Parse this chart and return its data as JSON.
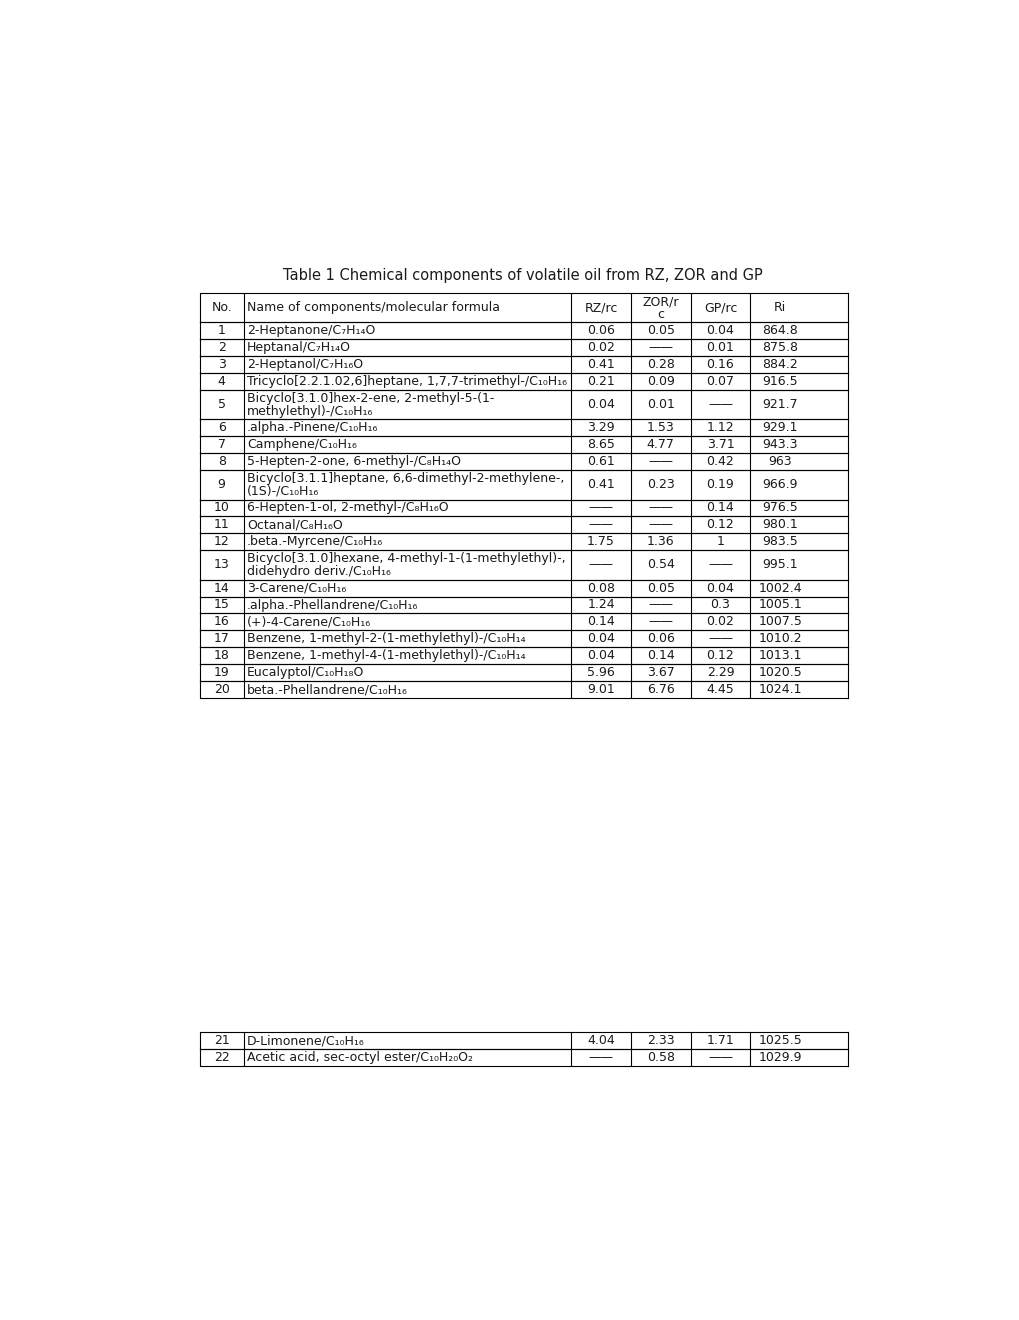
{
  "title": "Table 1 Chemical components of volatile oil from RZ, ZOR and GP",
  "rows": [
    [
      "1",
      "2-Heptanone/C₇H₁₄O",
      "0.06",
      "0.05",
      "0.04",
      "864.8"
    ],
    [
      "2",
      "Heptanal/C₇H₁₄O",
      "0.02",
      "——",
      "0.01",
      "875.8"
    ],
    [
      "3",
      "2-Heptanol/C₇H₁₆O",
      "0.41",
      "0.28",
      "0.16",
      "884.2"
    ],
    [
      "4",
      "Tricyclo[2.2.1.02,6]heptane, 1,7,7-trimethyl-/C₁₀H₁₆",
      "0.21",
      "0.09",
      "0.07",
      "916.5"
    ],
    [
      "5",
      "Bicyclo[3.1.0]hex-2-ene, 2-methyl-5-(1-\nmethylethyl)-/C₁₀H₁₆",
      "0.04",
      "0.01",
      "——",
      "921.7"
    ],
    [
      "6",
      ".alpha.-Pinene/C₁₀H₁₆",
      "3.29",
      "1.53",
      "1.12",
      "929.1"
    ],
    [
      "7",
      "Camphene/C₁₀H₁₆",
      "8.65",
      "4.77",
      "3.71",
      "943.3"
    ],
    [
      "8",
      "5-Hepten-2-one, 6-methyl-/C₈H₁₄O",
      "0.61",
      "——",
      "0.42",
      "963"
    ],
    [
      "9",
      "Bicyclo[3.1.1]heptane, 6,6-dimethyl-2-methylene-,\n(1S)-/C₁₀H₁₆",
      "0.41",
      "0.23",
      "0.19",
      "966.9"
    ],
    [
      "10",
      "6-Hepten-1-ol, 2-methyl-/C₈H₁₆O",
      "——",
      "——",
      "0.14",
      "976.5"
    ],
    [
      "11",
      "Octanal/C₈H₁₆O",
      "——",
      "——",
      "0.12",
      "980.1"
    ],
    [
      "12",
      ".beta.-Myrcene/C₁₀H₁₆",
      "1.75",
      "1.36",
      "1",
      "983.5"
    ],
    [
      "13",
      "Bicyclo[3.1.0]hexane, 4-methyl-1-(1-methylethyl)-,\ndidehydro deriv./C₁₀H₁₆",
      "——",
      "0.54",
      "——",
      "995.1"
    ],
    [
      "14",
      "3-Carene/C₁₀H₁₆",
      "0.08",
      "0.05",
      "0.04",
      "1002.4"
    ],
    [
      "15",
      ".alpha.-Phellandrene/C₁₀H₁₆",
      "1.24",
      "——",
      "0.3",
      "1005.1"
    ],
    [
      "16",
      "(+)-4-Carene/C₁₀H₁₆",
      "0.14",
      "——",
      "0.02",
      "1007.5"
    ],
    [
      "17",
      "Benzene, 1-methyl-2-(1-methylethyl)-/C₁₀H₁₄",
      "0.04",
      "0.06",
      "——",
      "1010.2"
    ],
    [
      "18",
      "Benzene, 1-methyl-4-(1-methylethyl)-/C₁₀H₁₄",
      "0.04",
      "0.14",
      "0.12",
      "1013.1"
    ],
    [
      "19",
      "Eucalyptol/C₁₀H₁₈O",
      "5.96",
      "3.67",
      "2.29",
      "1020.5"
    ],
    [
      "20",
      "beta.-Phellandrene/C₁₀H₁₆",
      "9.01",
      "6.76",
      "4.45",
      "1024.1"
    ]
  ],
  "rows_bottom": [
    [
      "21",
      "D-Limonene/C₁₀H₁₆",
      "4.04",
      "2.33",
      "1.71",
      "1025.5"
    ],
    [
      "22",
      "Acetic acid, sec-octyl ester/C₁₀H₂₀O₂",
      "——",
      "0.58",
      "——",
      "1029.9"
    ]
  ],
  "background_color": "#ffffff",
  "text_color": "#1a1a1a",
  "font_size": 9.0,
  "title_font_size": 10.5,
  "double_rows": [
    4,
    8,
    12
  ]
}
